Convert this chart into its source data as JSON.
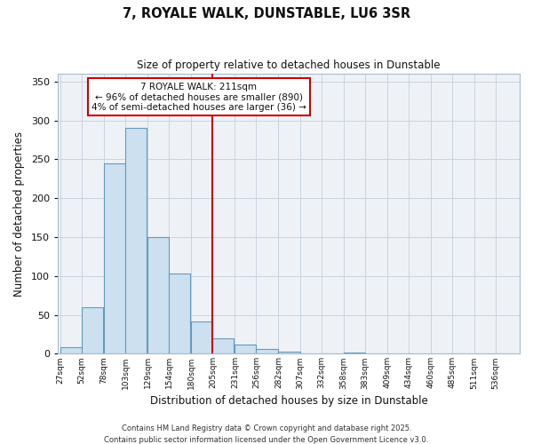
{
  "title": "7, ROYALE WALK, DUNSTABLE, LU6 3SR",
  "subtitle": "Size of property relative to detached houses in Dunstable",
  "xlabel": "Distribution of detached houses by size in Dunstable",
  "ylabel": "Number of detached properties",
  "bin_labels": [
    "27sqm",
    "52sqm",
    "78sqm",
    "103sqm",
    "129sqm",
    "154sqm",
    "180sqm",
    "205sqm",
    "231sqm",
    "256sqm",
    "282sqm",
    "307sqm",
    "332sqm",
    "358sqm",
    "383sqm",
    "409sqm",
    "434sqm",
    "460sqm",
    "485sqm",
    "511sqm",
    "536sqm"
  ],
  "bar_values": [
    8,
    60,
    245,
    290,
    150,
    103,
    42,
    20,
    12,
    6,
    3,
    0,
    0,
    2,
    0,
    0,
    0,
    0,
    0,
    0,
    1
  ],
  "bar_color": "#cce0f0",
  "bar_edge_color": "#6699bb",
  "property_line_value": 205,
  "bin_width": 25,
  "property_label": "7 ROYALE WALK: 211sqm",
  "annotation_line1": "← 96% of detached houses are smaller (890)",
  "annotation_line2": "4% of semi-detached houses are larger (36) →",
  "annotation_box_facecolor": "#ffffff",
  "annotation_box_edgecolor": "#cc0000",
  "vline_color": "#cc0000",
  "ylim": [
    0,
    360
  ],
  "yticks": [
    0,
    50,
    100,
    150,
    200,
    250,
    300,
    350
  ],
  "footer1": "Contains HM Land Registry data © Crown copyright and database right 2025.",
  "footer2": "Contains public sector information licensed under the Open Government Licence v3.0.",
  "bg_color": "#ffffff",
  "plot_bg_color": "#eef2f7",
  "grid_color": "#c8d4e0",
  "title_color": "#111111",
  "axis_label_color": "#111111",
  "tick_label_color": "#111111",
  "footer_color": "#333333"
}
